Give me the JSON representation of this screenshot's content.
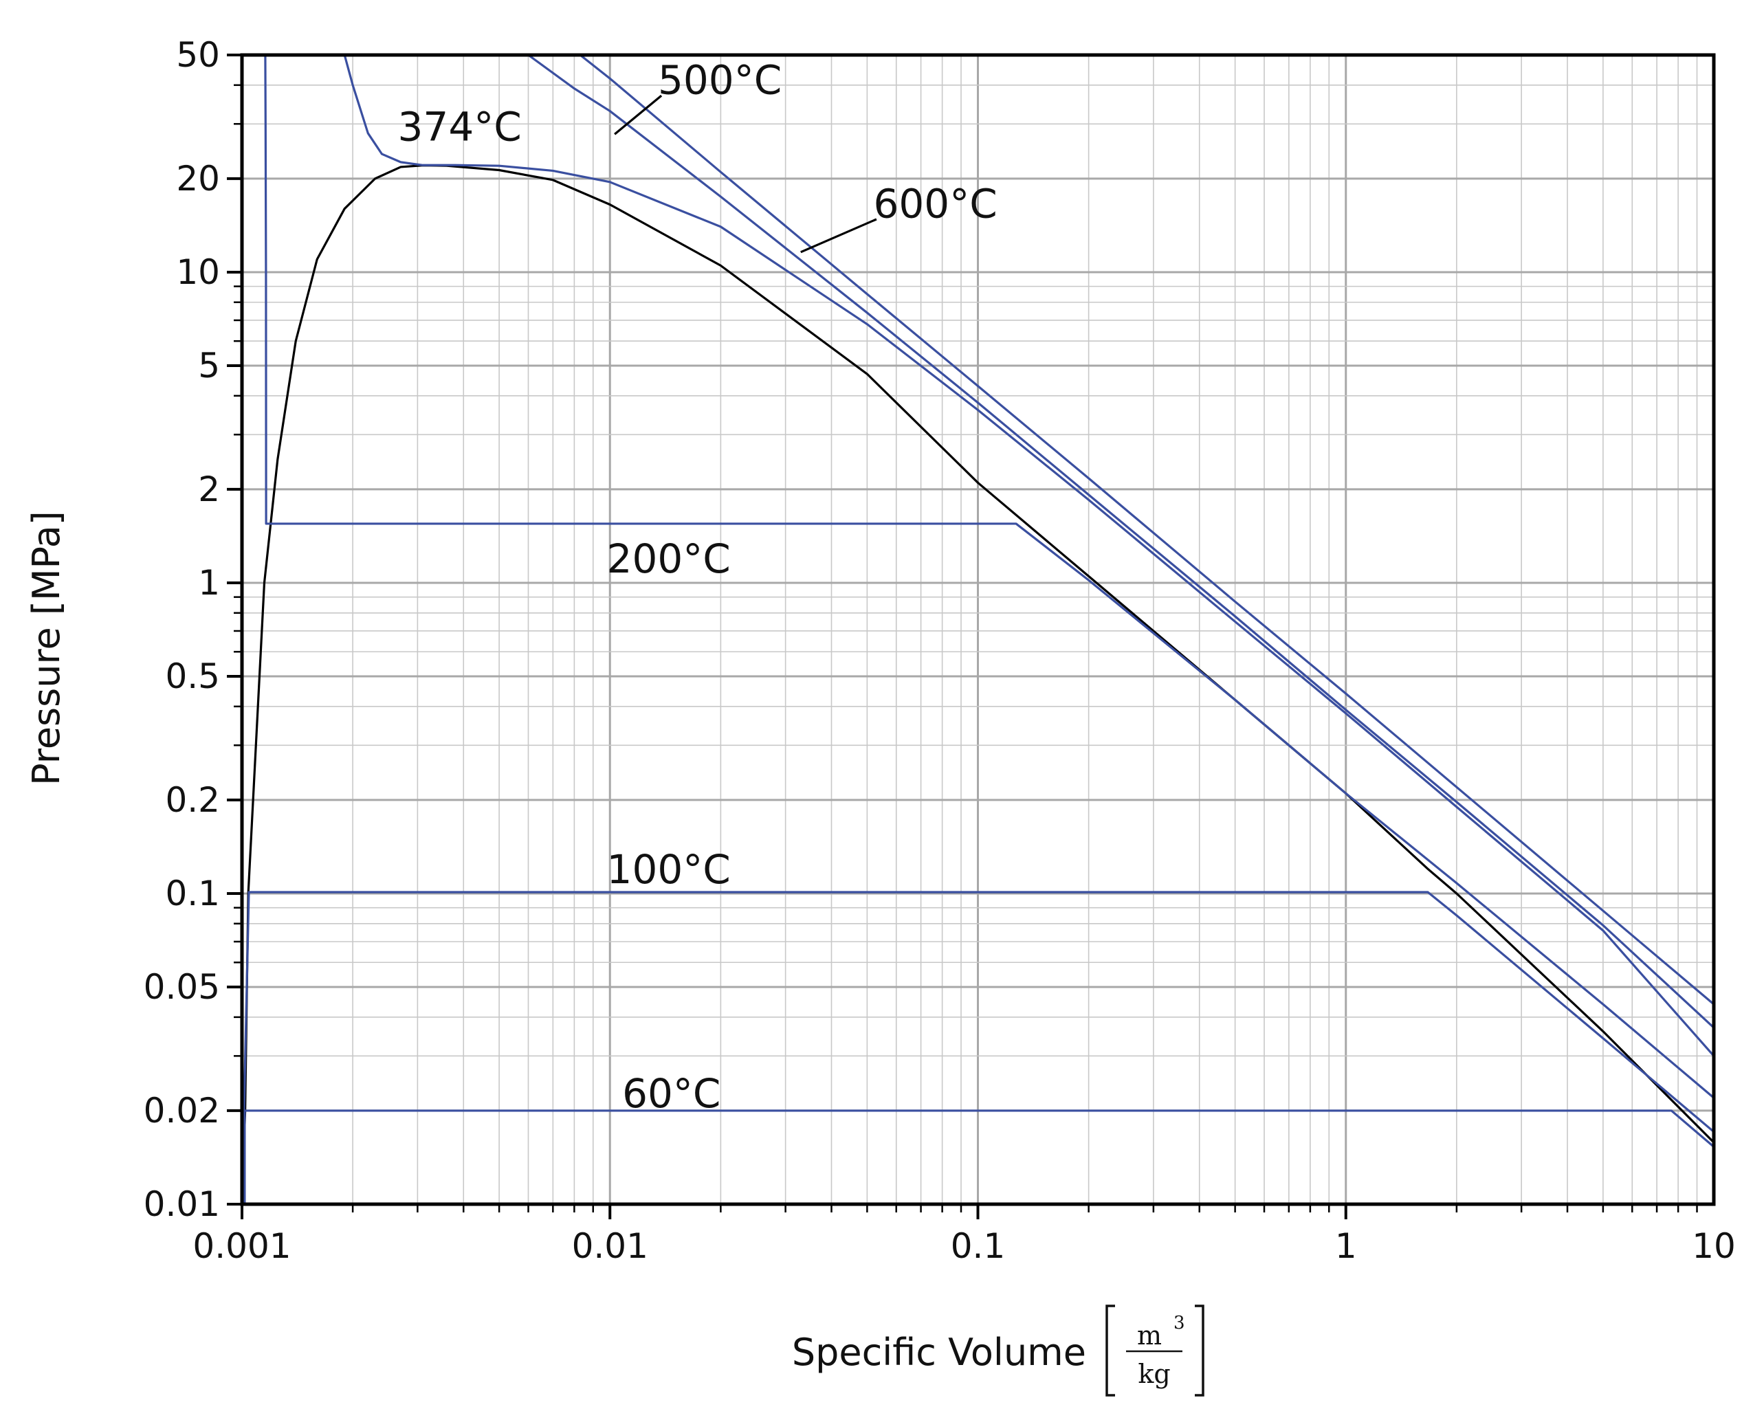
{
  "chart_data": {
    "type": "line",
    "title": "",
    "xlabel": "Specific Volume",
    "xlabel_unit_numerator": "m",
    "xlabel_unit_exponent": "3",
    "xlabel_unit_denominator": "kg",
    "ylabel": "Pressure [MPa]",
    "x_scale": "log",
    "y_scale": "log",
    "xlim": [
      0.001,
      10
    ],
    "ylim": [
      0.01,
      50
    ],
    "x_ticks": [
      {
        "value": 0.001,
        "label": "0.001"
      },
      {
        "value": 0.01,
        "label": "0.01"
      },
      {
        "value": 0.1,
        "label": "0.1"
      },
      {
        "value": 1,
        "label": "1"
      },
      {
        "value": 10,
        "label": "10"
      }
    ],
    "y_ticks": [
      {
        "value": 0.01,
        "label": "0.01"
      },
      {
        "value": 0.02,
        "label": "0.02"
      },
      {
        "value": 0.05,
        "label": "0.05"
      },
      {
        "value": 0.1,
        "label": "0.1"
      },
      {
        "value": 0.2,
        "label": "0.2"
      },
      {
        "value": 0.5,
        "label": "0.5"
      },
      {
        "value": 1,
        "label": "1"
      },
      {
        "value": 2,
        "label": "2"
      },
      {
        "value": 5,
        "label": "5"
      },
      {
        "value": 10,
        "label": "10"
      },
      {
        "value": 20,
        "label": "20"
      },
      {
        "value": 50,
        "label": "50"
      }
    ],
    "grid": true,
    "colors": {
      "isotherm": "#3a4fa0",
      "dome": "#000000",
      "grid": "#b0b0b0"
    },
    "series": [
      {
        "kind": "dome",
        "points": [
          [
            0.001,
            0.01
          ],
          [
            0.00102,
            0.02
          ],
          [
            0.00104,
            0.1
          ],
          [
            0.00115,
            1.0
          ],
          [
            0.00125,
            2.5
          ],
          [
            0.0014,
            6.0
          ],
          [
            0.0016,
            11.0
          ],
          [
            0.0019,
            16.0
          ],
          [
            0.0023,
            20.0
          ],
          [
            0.0027,
            21.8
          ],
          [
            0.0031,
            22.06
          ],
          [
            0.0036,
            22.0
          ],
          [
            0.005,
            21.3
          ],
          [
            0.007,
            19.8
          ],
          [
            0.01,
            16.5
          ],
          [
            0.02,
            10.5
          ],
          [
            0.05,
            4.7
          ],
          [
            0.1,
            2.1
          ],
          [
            0.2,
            1.05
          ],
          [
            0.5,
            0.42
          ],
          [
            1.0,
            0.21
          ],
          [
            1.67,
            0.12
          ],
          [
            2.0,
            0.1
          ],
          [
            5.0,
            0.036
          ],
          [
            10.0,
            0.0158
          ]
        ]
      },
      {
        "kind": "isotherm",
        "points": [
          [
            0.001017,
            0.01
          ],
          [
            0.001017,
            0.02
          ],
          [
            7.67,
            0.02
          ],
          [
            10.0,
            0.0153
          ]
        ]
      },
      {
        "kind": "isotherm",
        "points": [
          [
            0.001,
            0.01
          ],
          [
            0.001044,
            0.101
          ],
          [
            1.67,
            0.101
          ],
          [
            2.0,
            0.085
          ],
          [
            5.0,
            0.0342
          ],
          [
            10.0,
            0.0171
          ]
        ]
      },
      {
        "kind": "isotherm",
        "points": [
          [
            0.001157,
            50
          ],
          [
            0.001159,
            30
          ],
          [
            0.001162,
            10
          ],
          [
            0.001163,
            1.55
          ],
          [
            0.127,
            1.55
          ],
          [
            0.2,
            1.02
          ],
          [
            0.5,
            0.42
          ],
          [
            1.0,
            0.21
          ],
          [
            2.0,
            0.108
          ],
          [
            5.0,
            0.044
          ],
          [
            10.0,
            0.022
          ]
        ]
      },
      {
        "kind": "isotherm",
        "label_position": [
          0.0023,
          28
        ],
        "points": [
          [
            0.0019,
            50
          ],
          [
            0.002,
            40
          ],
          [
            0.0022,
            28
          ],
          [
            0.0024,
            24
          ],
          [
            0.0027,
            22.6
          ],
          [
            0.0031,
            22.1
          ],
          [
            0.0038,
            22.1
          ],
          [
            0.005,
            22.0
          ],
          [
            0.007,
            21.2
          ],
          [
            0.01,
            19.5
          ],
          [
            0.02,
            14.0
          ],
          [
            0.05,
            6.8
          ],
          [
            0.1,
            3.6
          ],
          [
            0.2,
            1.85
          ],
          [
            0.5,
            0.75
          ],
          [
            1.0,
            0.38
          ],
          [
            2.0,
            0.19
          ],
          [
            5.0,
            0.076
          ],
          [
            10.0,
            0.03
          ]
        ]
      },
      {
        "kind": "isotherm",
        "label_position": [
          0.0135,
          37
        ],
        "points": [
          [
            0.006,
            50
          ],
          [
            0.008,
            39
          ],
          [
            0.01,
            33
          ],
          [
            0.02,
            17.5
          ],
          [
            0.05,
            7.4
          ],
          [
            0.1,
            3.8
          ],
          [
            0.2,
            1.92
          ],
          [
            0.5,
            0.78
          ],
          [
            1.0,
            0.39
          ],
          [
            2.0,
            0.197
          ],
          [
            5.0,
            0.079
          ],
          [
            10.0,
            0.037
          ]
        ]
      },
      {
        "kind": "isotherm",
        "label_position": [
          0.05,
          15
        ],
        "points": [
          [
            0.0083,
            50
          ],
          [
            0.01,
            42
          ],
          [
            0.02,
            21
          ],
          [
            0.05,
            8.5
          ],
          [
            0.1,
            4.3
          ],
          [
            0.2,
            2.17
          ],
          [
            0.5,
            0.87
          ],
          [
            1.0,
            0.44
          ],
          [
            2.0,
            0.22
          ],
          [
            5.0,
            0.088
          ],
          [
            10.0,
            0.044
          ]
        ]
      }
    ],
    "annotations": [
      {
        "text": "374°C",
        "x": 0.00265,
        "y": 26.5
      },
      {
        "text": "500°C",
        "x": 0.0135,
        "y": 37.5
      },
      {
        "text": "600°C",
        "x": 0.052,
        "y": 15.0
      },
      {
        "text": "200°C",
        "x": 0.0098,
        "y": 1.08
      },
      {
        "text": "100°C",
        "x": 0.0098,
        "y": 0.108
      },
      {
        "text": "60°C",
        "x": 0.0108,
        "y": 0.0205
      }
    ],
    "leaders": [
      {
        "from": [
          0.0138,
          37.0
        ],
        "to": [
          0.0103,
          27.8
        ]
      },
      {
        "from": [
          0.053,
          14.8
        ],
        "to": [
          0.033,
          11.6
        ]
      }
    ]
  }
}
